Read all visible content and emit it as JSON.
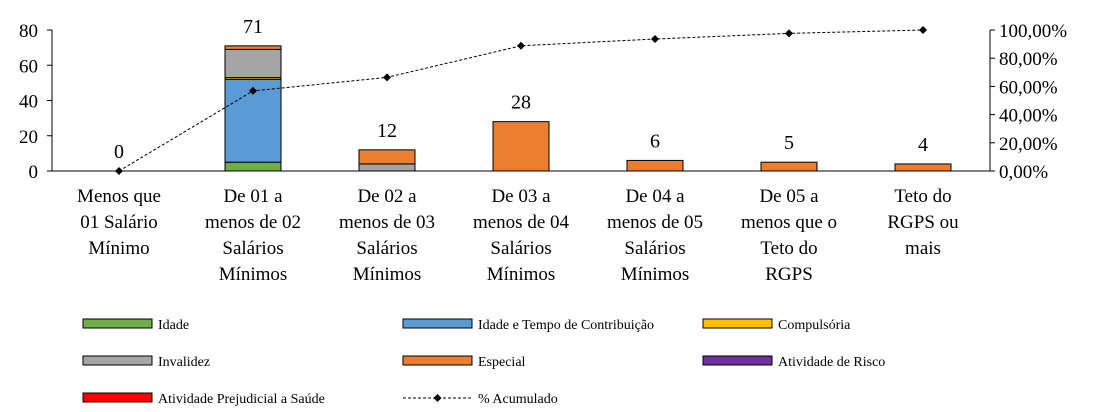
{
  "chart_data": {
    "type": "bar",
    "stacked": true,
    "categories": [
      [
        "Menos que",
        "01 Salário",
        "Mínimo"
      ],
      [
        "De 01 a",
        "menos de 02",
        "Salários",
        "Mínimos"
      ],
      [
        "De 02 a",
        "menos de 03",
        "Salários",
        "Mínimos"
      ],
      [
        "De 03 a",
        "menos de 04",
        "Salários",
        "Mínimos"
      ],
      [
        "De 04 a",
        "menos de 05",
        "Salários",
        "Mínimos"
      ],
      [
        "De 05 a",
        "menos que o",
        "Teto do",
        "RGPS"
      ],
      [
        "Teto do",
        "RGPS ou",
        "mais"
      ]
    ],
    "totals": [
      "0",
      "71",
      "12",
      "28",
      "6",
      "5",
      "4"
    ],
    "series": [
      {
        "name": "Idade",
        "color": "#70AD47",
        "values": [
          0,
          5,
          0,
          0,
          0,
          0,
          0
        ]
      },
      {
        "name": "Idade e Tempo de Contribuição",
        "color": "#5B9BD5",
        "values": [
          0,
          47,
          0,
          0,
          0,
          0,
          0
        ]
      },
      {
        "name": "Compulsória",
        "color": "#FFC000",
        "values": [
          0,
          1,
          0,
          0,
          0,
          0,
          0
        ]
      },
      {
        "name": "Invalidez",
        "color": "#A5A5A5",
        "values": [
          0,
          16,
          4,
          0,
          0,
          0,
          0
        ]
      },
      {
        "name": "Especial",
        "color": "#ED7D31",
        "values": [
          0,
          2,
          8,
          28,
          6,
          5,
          4
        ]
      },
      {
        "name": "Atividade de Risco",
        "color": "#7030A0",
        "values": [
          0,
          0,
          0,
          0,
          0,
          0,
          0
        ]
      },
      {
        "name": "Atividade Prejudicial a Saúde",
        "color": "#FF0000",
        "values": [
          0,
          0,
          0,
          0,
          0,
          0,
          0
        ]
      }
    ],
    "line_series": {
      "name": "% Acumulado",
      "values": [
        0,
        56.8,
        66.4,
        88.8,
        93.6,
        97.6,
        100
      ],
      "axis": "right",
      "style": "dashed-with-diamond-markers"
    },
    "y_left": {
      "range": [
        0,
        80
      ],
      "ticks": [
        "0",
        "20",
        "40",
        "60",
        "80"
      ]
    },
    "y_right": {
      "range": [
        0,
        100
      ],
      "ticks": [
        "0,00%",
        "20,00%",
        "40,00%",
        "60,00%",
        "80,00%",
        "100,00%"
      ]
    },
    "grid": false,
    "legend_position": "bottom"
  }
}
